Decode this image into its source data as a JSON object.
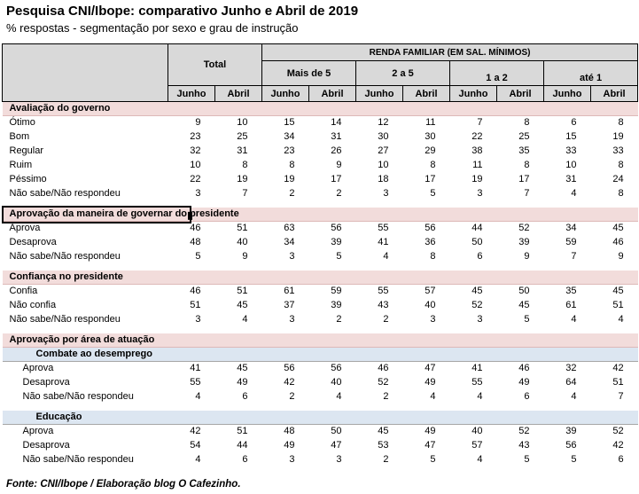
{
  "title": "Pesquisa CNI/Ibope: comparativo Junho e Abril de 2019",
  "subtitle": "% respostas - segmentação por sexo e grau de instrução",
  "source": "Fonte: CNI/Ibope / Elaboração blog O Cafezinho.",
  "colors": {
    "table_header_bg": "#d9d9d9",
    "section_header_bg": "#f2dcdb",
    "subsection_header_bg": "#dce6f1",
    "selection_box": "#000000"
  },
  "table": {
    "renda_header": "RENDA FAMILIAR (EM SAL. MÍNIMOS)",
    "groups": [
      {
        "label": "Total"
      },
      {
        "label": "Mais de 5"
      },
      {
        "label": "2 a 5"
      },
      {
        "label": "1 a 2"
      },
      {
        "label": "até 1"
      }
    ],
    "months": [
      "Junho",
      "Abril"
    ],
    "sections": [
      {
        "type": "section",
        "label": "Avaliação do governo",
        "gap_before": false,
        "focus_box": false,
        "rows": [
          {
            "label": "Ótimo",
            "values": [
              9,
              10,
              15,
              14,
              12,
              11,
              7,
              8,
              6,
              8
            ]
          },
          {
            "label": "Bom",
            "values": [
              23,
              25,
              34,
              31,
              30,
              30,
              22,
              25,
              15,
              19
            ]
          },
          {
            "label": "Regular",
            "values": [
              32,
              31,
              23,
              26,
              27,
              29,
              38,
              35,
              33,
              33
            ]
          },
          {
            "label": "Ruim",
            "values": [
              10,
              8,
              8,
              9,
              10,
              8,
              11,
              8,
              10,
              8
            ]
          },
          {
            "label": "Péssimo",
            "values": [
              22,
              19,
              19,
              17,
              18,
              17,
              19,
              17,
              31,
              24
            ]
          },
          {
            "label": "Não sabe/Não respondeu",
            "values": [
              3,
              7,
              2,
              2,
              3,
              5,
              3,
              7,
              4,
              8
            ]
          }
        ]
      },
      {
        "type": "section",
        "label": "Aprovação da maneira de governar do presidente",
        "gap_before": true,
        "focus_box": true,
        "rows": [
          {
            "label": "Aprova",
            "values": [
              46,
              51,
              63,
              56,
              55,
              56,
              44,
              52,
              34,
              45
            ]
          },
          {
            "label": "Desaprova",
            "values": [
              48,
              40,
              34,
              39,
              41,
              36,
              50,
              39,
              59,
              46
            ]
          },
          {
            "label": "Não sabe/Não respondeu",
            "values": [
              5,
              9,
              3,
              5,
              4,
              8,
              6,
              9,
              7,
              9
            ]
          }
        ]
      },
      {
        "type": "section",
        "label": "Confiança no presidente",
        "gap_before": true,
        "focus_box": false,
        "rows": [
          {
            "label": "Confia",
            "values": [
              46,
              51,
              61,
              59,
              55,
              57,
              45,
              50,
              35,
              45
            ]
          },
          {
            "label": "Não confia",
            "values": [
              51,
              45,
              37,
              39,
              43,
              40,
              52,
              45,
              61,
              51
            ]
          },
          {
            "label": "Não sabe/Não respondeu",
            "values": [
              3,
              4,
              3,
              2,
              2,
              3,
              3,
              5,
              4,
              4
            ]
          }
        ]
      },
      {
        "type": "section",
        "label": "Aprovação por área de atuação",
        "gap_before": true,
        "focus_box": false,
        "rows": []
      },
      {
        "type": "subsection",
        "label": "Combate ao desemprego",
        "gap_before": false,
        "focus_box": false,
        "rows": [
          {
            "label": "Aprova",
            "values": [
              41,
              45,
              56,
              56,
              46,
              47,
              41,
              46,
              32,
              42
            ]
          },
          {
            "label": "Desaprova",
            "values": [
              55,
              49,
              42,
              40,
              52,
              49,
              55,
              49,
              64,
              51
            ]
          },
          {
            "label": "Não sabe/Não respondeu",
            "values": [
              4,
              6,
              2,
              4,
              2,
              4,
              4,
              6,
              4,
              7
            ]
          }
        ]
      },
      {
        "type": "subsection",
        "label": "Educação",
        "gap_before": true,
        "focus_box": false,
        "rows": [
          {
            "label": "Aprova",
            "values": [
              42,
              51,
              48,
              50,
              45,
              49,
              40,
              52,
              39,
              52
            ]
          },
          {
            "label": "Desaprova",
            "values": [
              54,
              44,
              49,
              47,
              53,
              47,
              57,
              43,
              56,
              42
            ]
          },
          {
            "label": "Não sabe/Não respondeu",
            "values": [
              4,
              6,
              3,
              3,
              2,
              5,
              4,
              5,
              5,
              6
            ]
          }
        ]
      }
    ]
  }
}
